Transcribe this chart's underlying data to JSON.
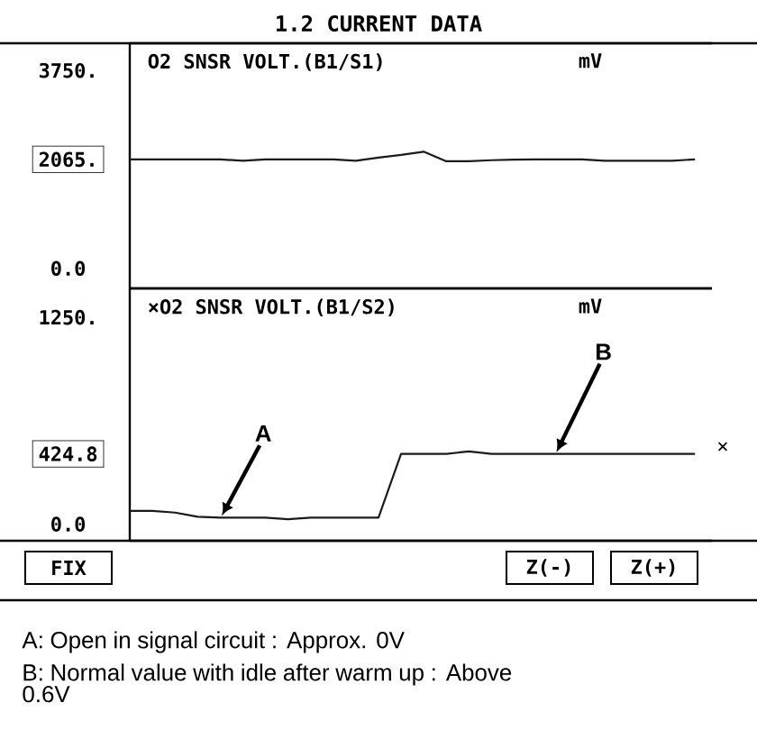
{
  "chart_data": [
    {
      "type": "line",
      "title": "1.2 CURRENT DATA",
      "ylabel": "mV",
      "categories": [
        null,
        null,
        null,
        null,
        null,
        null,
        null,
        null,
        null,
        null,
        null,
        null,
        null,
        null,
        null,
        null,
        null,
        null,
        null,
        null,
        null,
        null,
        null,
        null,
        null,
        null
      ],
      "series": [
        {
          "name": "O2 SNSR VOLT.(B1/S1)",
          "color": "#1a1a1a",
          "values": [
            2065,
            2065,
            2065,
            2065,
            2065,
            2040,
            2065,
            2065,
            2065,
            2065,
            2040,
            2100,
            2150,
            2210,
            2030,
            2030,
            2050,
            2060,
            2065,
            2065,
            2065,
            2040,
            2040,
            2040,
            2040,
            2065
          ]
        }
      ],
      "ylim": [
        -380,
        4266
      ],
      "yticks": [
        {
          "value": 0,
          "label": "0.0"
        },
        {
          "value": 2065,
          "label": "2065."
        },
        {
          "value": 3750,
          "label": "3750."
        }
      ],
      "tick_labels": "y",
      "grid": false,
      "marker": "none",
      "line_style": "solid"
    },
    {
      "type": "line",
      "ylabel": "mV",
      "categories": [
        null,
        null,
        null,
        null,
        null,
        null,
        null,
        null,
        null,
        null,
        null,
        null,
        null,
        null,
        null,
        null,
        null,
        null,
        null,
        null,
        null,
        null,
        null,
        null,
        null,
        null
      ],
      "series": [
        {
          "name": "×O2 SNSR VOLT.(B1/S2)",
          "color": "#1a1a1a",
          "values": [
            80,
            80,
            70,
            45,
            40,
            40,
            40,
            30,
            40,
            40,
            40,
            40,
            424.8,
            424.8,
            424.8,
            440,
            424.8,
            424.8,
            424.8,
            424.8,
            424.8,
            424.8,
            424.8,
            424.8,
            424.8,
            424.8
          ]
        }
      ],
      "ylim": [
        -100,
        1425
      ],
      "yticks": [
        {
          "value": 0,
          "label": "0.0"
        },
        {
          "value": 424.8,
          "label": "424.8"
        },
        {
          "value": 1250,
          "label": "1250."
        }
      ],
      "annotations": [
        "A",
        "B",
        "×",
        "FIX",
        "Z(-)",
        "Z(+)",
        "A: Open in signal circuit : Approx. 0V",
        "B: Normal value with idle after warm up : Above 0.6V"
      ],
      "tick_labels": "y",
      "grid": false,
      "marker": "none",
      "line_style": "solid"
    }
  ]
}
